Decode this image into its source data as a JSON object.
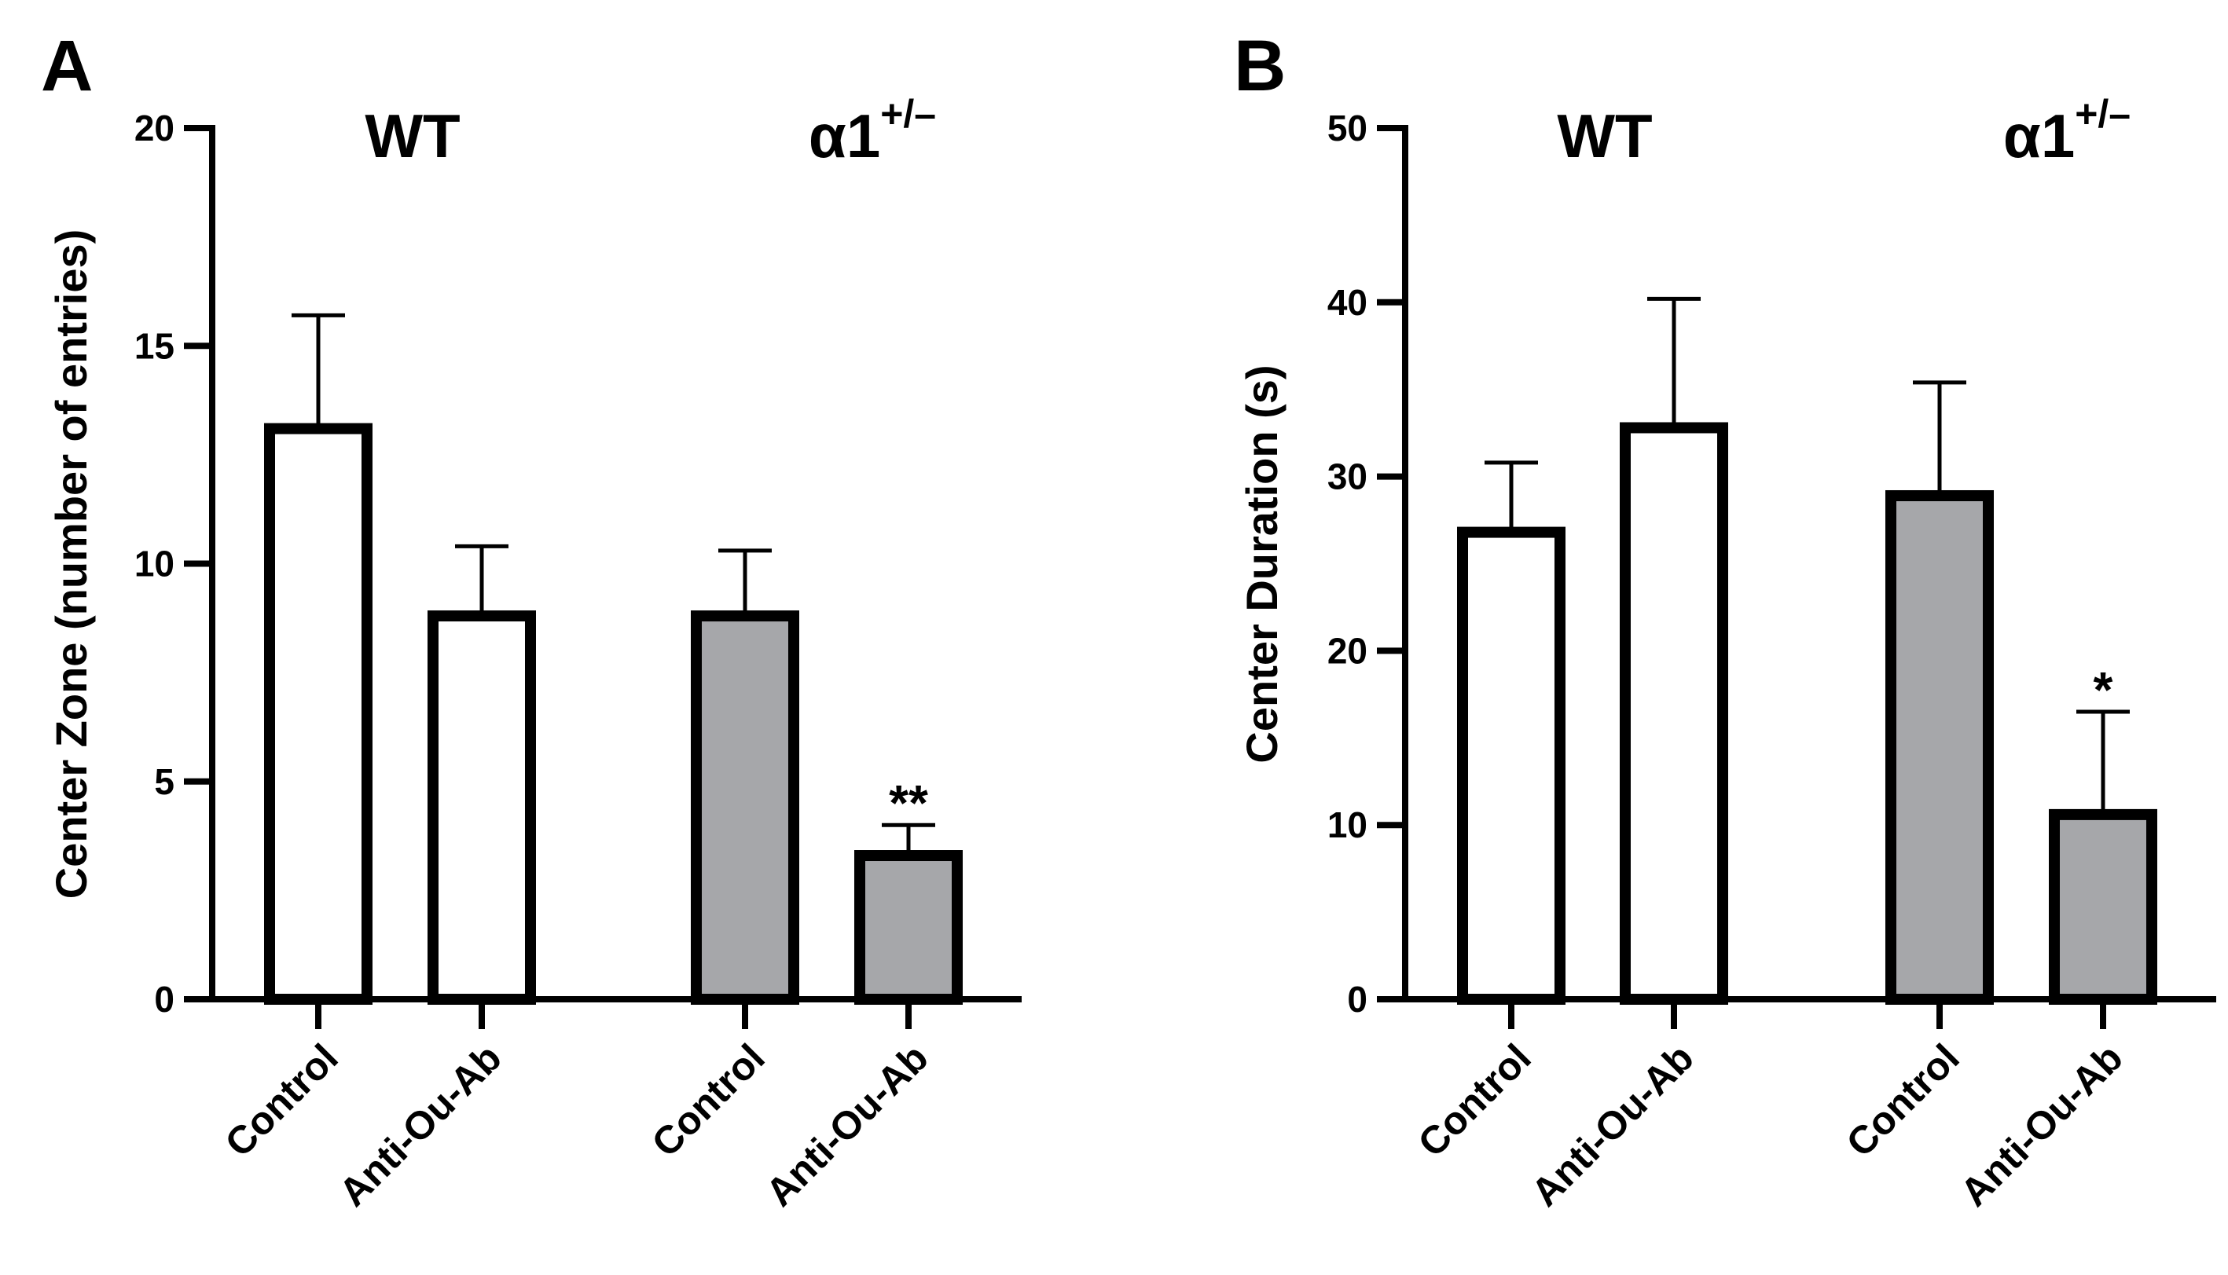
{
  "chart_data": [
    {
      "type": "bar",
      "panel_label": "A",
      "ylabel": "Center Zone (number of entries)",
      "ylim": [
        0,
        20
      ],
      "yticks": [
        0,
        5,
        10,
        15,
        20
      ],
      "groups": [
        {
          "label": "WT",
          "superscript": ""
        },
        {
          "label": "α1",
          "superscript": "+/–"
        }
      ],
      "bars": [
        {
          "group": 0,
          "category": "Control",
          "value": 13.1,
          "error": 2.6,
          "fill": "#ffffff",
          "significance": ""
        },
        {
          "group": 0,
          "category": "Anti-Ou-Ab",
          "value": 8.8,
          "error": 1.6,
          "fill": "#ffffff",
          "significance": ""
        },
        {
          "group": 1,
          "category": "Control",
          "value": 8.8,
          "error": 1.5,
          "fill": "#a6a7aa",
          "significance": ""
        },
        {
          "group": 1,
          "category": "Anti-Ou-Ab",
          "value": 3.3,
          "error": 0.7,
          "fill": "#a6a7aa",
          "significance": "**"
        }
      ]
    },
    {
      "type": "bar",
      "panel_label": "B",
      "ylabel": "Center Duration (s)",
      "ylim": [
        0,
        50
      ],
      "yticks": [
        0,
        10,
        20,
        30,
        40,
        50
      ],
      "groups": [
        {
          "label": "WT",
          "superscript": ""
        },
        {
          "label": "α1",
          "superscript": "+/–"
        }
      ],
      "bars": [
        {
          "group": 0,
          "category": "Control",
          "value": 26.8,
          "error": 4.0,
          "fill": "#ffffff",
          "significance": ""
        },
        {
          "group": 0,
          "category": "Anti-Ou-Ab",
          "value": 32.8,
          "error": 7.4,
          "fill": "#ffffff",
          "significance": ""
        },
        {
          "group": 1,
          "category": "Control",
          "value": 28.9,
          "error": 6.5,
          "fill": "#a6a7aa",
          "significance": ""
        },
        {
          "group": 1,
          "category": "Anti-Ou-Ab",
          "value": 10.6,
          "error": 5.9,
          "fill": "#a6a7aa",
          "significance": "*"
        }
      ]
    }
  ]
}
